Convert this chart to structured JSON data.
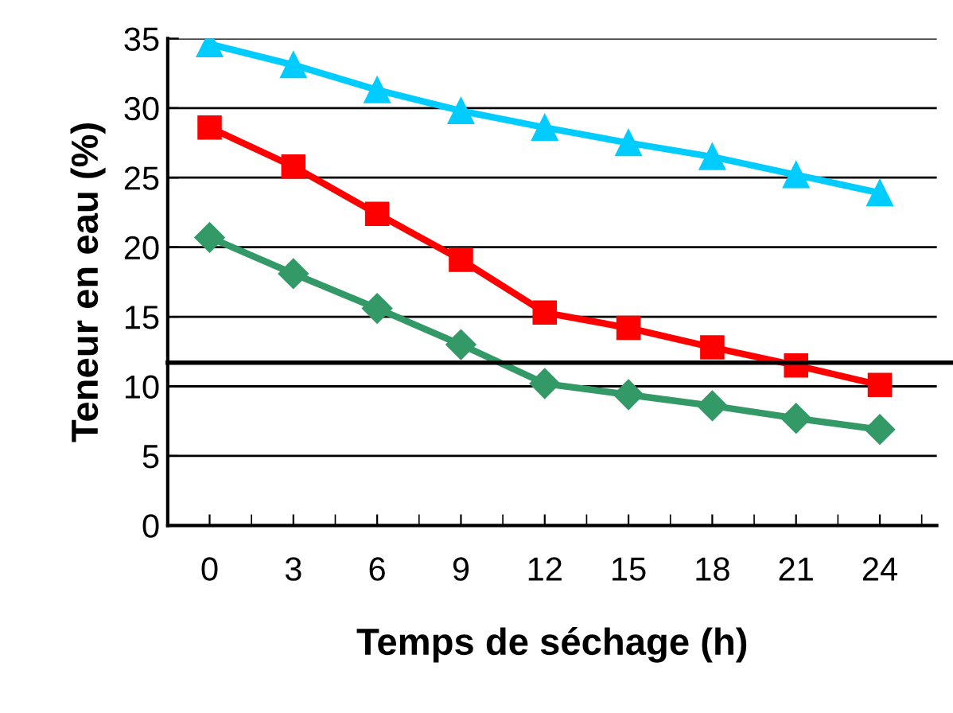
{
  "chart_data": {
    "type": "line",
    "xlabel": "Temps de séchage (h)",
    "ylabel": "Teneur en eau (%)",
    "categories": [
      "0",
      "3",
      "6",
      "9",
      "12",
      "15",
      "18",
      "21",
      "24"
    ],
    "series": [
      {
        "color": "#00ccff",
        "marker": "triangle",
        "values": [
          34.6,
          33.1,
          31.3,
          29.8,
          28.6,
          27.5,
          26.5,
          25.2,
          23.9
        ]
      },
      {
        "color": "#ff0000",
        "marker": "square",
        "values": [
          28.6,
          25.8,
          22.4,
          19.1,
          15.3,
          14.2,
          12.8,
          11.5,
          10.1
        ]
      },
      {
        "color": "#339966",
        "marker": "diamond",
        "values": [
          20.7,
          18.1,
          15.6,
          13.0,
          10.2,
          9.4,
          8.6,
          7.7,
          6.9
        ]
      }
    ],
    "ylim": [
      0,
      35
    ],
    "yticks": [
      0,
      5,
      10,
      15,
      20,
      25,
      30,
      35
    ],
    "ref_lines": [
      {
        "axis": "y",
        "value": 11.7,
        "color": "#000000"
      }
    ],
    "grid": "y",
    "line_style": "solid"
  }
}
